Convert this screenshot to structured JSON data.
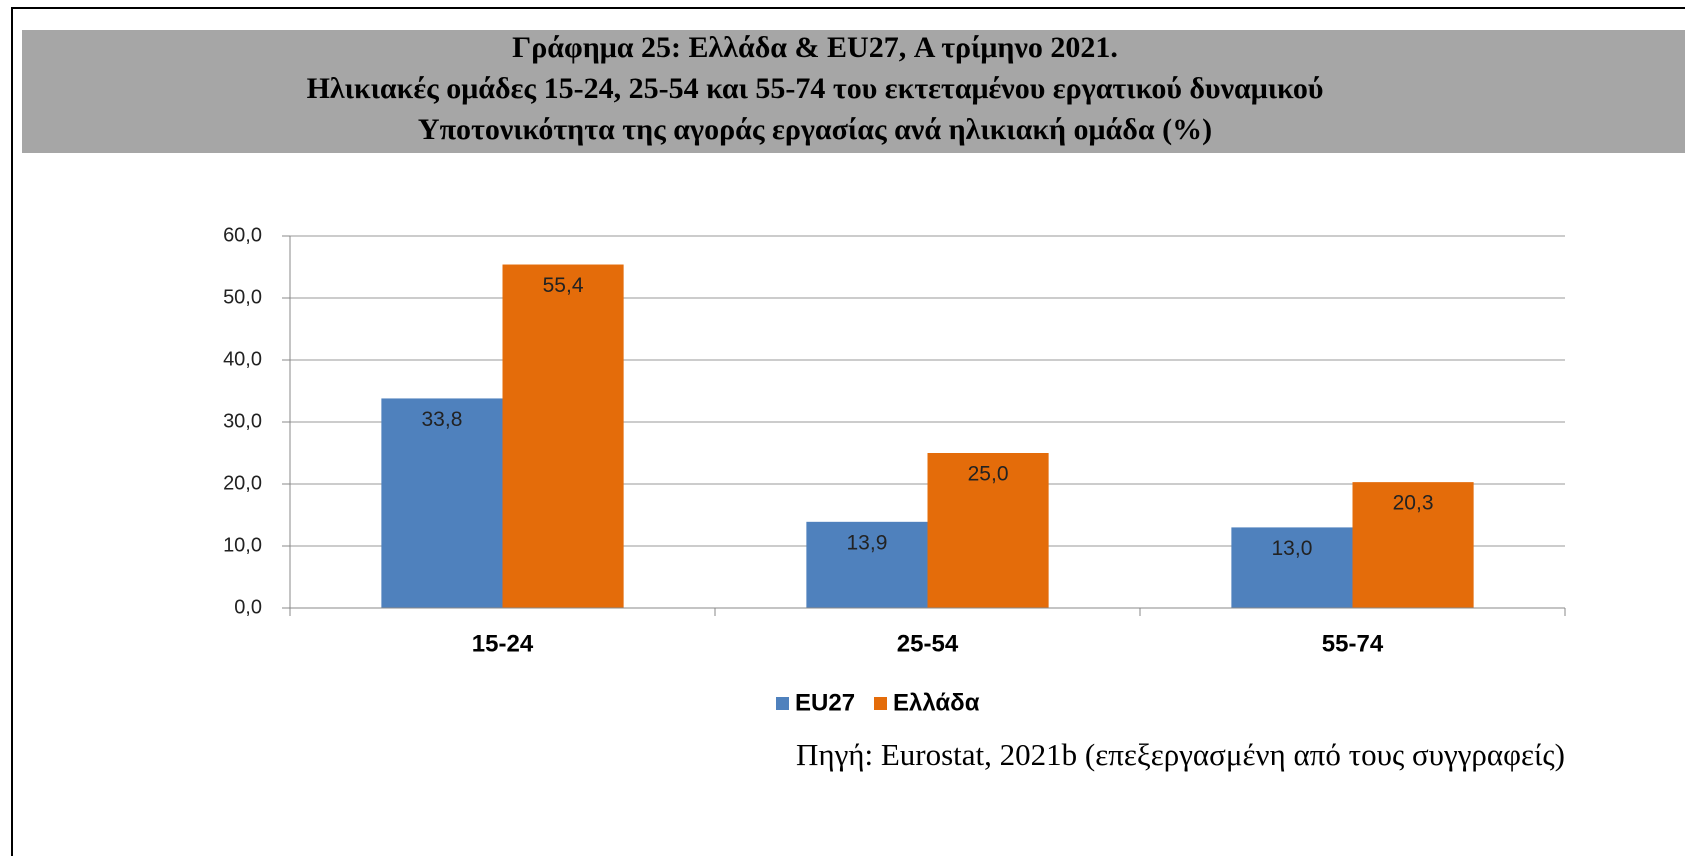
{
  "chart_data": {
    "type": "bar",
    "title": [
      "Γράφημα 25: Ελλάδα & EU27,   Α τρίμηνο 2021.",
      "Ηλικιακές ομάδες 15-24, 25-54 και 55-74 του εκτεταμένου εργατικού δυναμικού",
      "Υποτονικότητα της αγοράς εργασίας ανά ηλικιακή ομάδα (%)"
    ],
    "source": "Πηγή: Eurostat, 2021b (επεξεργασμένη από τους συγγραφείς)",
    "categories": [
      "15-24",
      "25-54",
      "55-74"
    ],
    "series": [
      {
        "name": "EU27",
        "color": "#4f81bd",
        "values": [
          33.8,
          13.9,
          13.0
        ],
        "value_labels": [
          "33,8",
          "13,9",
          "13,0"
        ]
      },
      {
        "name": "Ελλάδα",
        "color": "#e46c0a",
        "values": [
          55.4,
          25.0,
          20.3
        ],
        "value_labels": [
          "55,4",
          "25,0",
          "20,3"
        ]
      }
    ],
    "ylim": [
      0,
      60
    ],
    "yticks": [
      {
        "value": 0,
        "label": "0,0"
      },
      {
        "value": 10,
        "label": "10,0"
      },
      {
        "value": 20,
        "label": "20,0"
      },
      {
        "value": 30,
        "label": "30,0"
      },
      {
        "value": 40,
        "label": "40,0"
      },
      {
        "value": 50,
        "label": "50,0"
      },
      {
        "value": 60,
        "label": "60,0"
      }
    ],
    "grid": true,
    "legend": "bottom"
  }
}
